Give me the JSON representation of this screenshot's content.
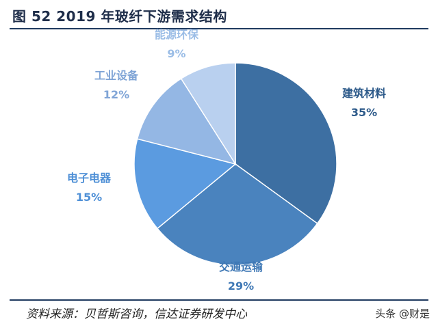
{
  "header": {
    "title": "图 52 2019 年玻纤下游需求结构"
  },
  "footer": {
    "source": "资料来源：贝哲斯咨询，信达证券研发中心",
    "watermark": "头条 @财是"
  },
  "chart_data": {
    "type": "pie",
    "title": "图 52 2019 年玻纤下游需求结构",
    "categories": [
      "建筑材料",
      "交通运输",
      "电子电器",
      "工业设备",
      "能源环保"
    ],
    "values": [
      35,
      29,
      15,
      12,
      9
    ],
    "value_labels": [
      "35%",
      "29%",
      "15%",
      "12%",
      "9%"
    ],
    "slice_colors": [
      "#3d6fa2",
      "#4a83be",
      "#5b9be0",
      "#94b7e4",
      "#b9d0ef"
    ],
    "label_colors": [
      "#2d5a8a",
      "#3f78b5",
      "#4e8fd6",
      "#7fa4d6",
      "#9bbde6"
    ],
    "start_angle_deg": 0,
    "direction": "clockwise"
  }
}
